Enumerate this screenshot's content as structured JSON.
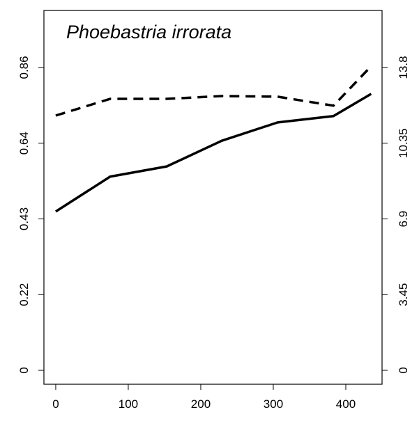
{
  "chart_data": {
    "type": "line",
    "title": "Phoebastria irrorata",
    "x": [
      0,
      75,
      153,
      229,
      306,
      383,
      435
    ],
    "series": [
      {
        "color": "#000000",
        "style": "solid",
        "values": [
          0.451,
          0.55,
          0.579,
          0.652,
          0.704,
          0.722,
          0.785
        ]
      },
      {
        "color": "#000000",
        "style": "dashed",
        "axis": "y2",
        "values": [
          11.61,
          12.37,
          12.37,
          12.5,
          12.47,
          12.06,
          13.86
        ]
      }
    ],
    "xlim": [
      -16.3,
      450
    ],
    "xticks": [
      0,
      100,
      200,
      300,
      400
    ],
    "ylim": [
      -0.0395,
      1.022
    ],
    "yticks": [
      0,
      {
        "value": 0.215,
        "label": "0.22"
      },
      0.43,
      {
        "value": 0.645,
        "label": "0.64"
      },
      0.86
    ],
    "y2lim": [
      -0.634,
      16.4
    ],
    "y2ticks": [
      0,
      3.45,
      6.9,
      10.35,
      13.8
    ]
  }
}
